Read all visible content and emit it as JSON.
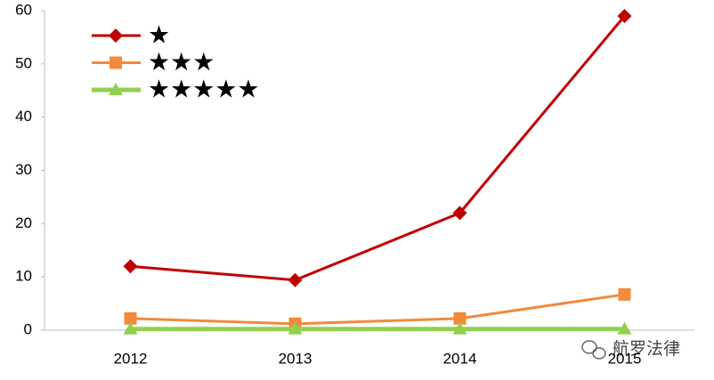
{
  "chart_data": {
    "type": "line",
    "categories": [
      "2012",
      "2013",
      "2014",
      "2015"
    ],
    "series": [
      {
        "name": "★",
        "color": "#c00000",
        "marker": "diamond",
        "values": [
          12,
          9.4,
          22,
          59
        ]
      },
      {
        "name": "★★★",
        "color": "#f28a3c",
        "marker": "square",
        "values": [
          2.2,
          1.2,
          2.2,
          6.7
        ]
      },
      {
        "name": "★★★★★",
        "color": "#92d050",
        "marker": "triangle",
        "values": [
          0.2,
          0.2,
          0.2,
          0.2
        ]
      }
    ],
    "ylim": [
      0,
      60
    ],
    "yticks": [
      0,
      10,
      20,
      30,
      40,
      50,
      60
    ],
    "grid": false,
    "legend": "top-left",
    "watermark": "航罗法律"
  }
}
